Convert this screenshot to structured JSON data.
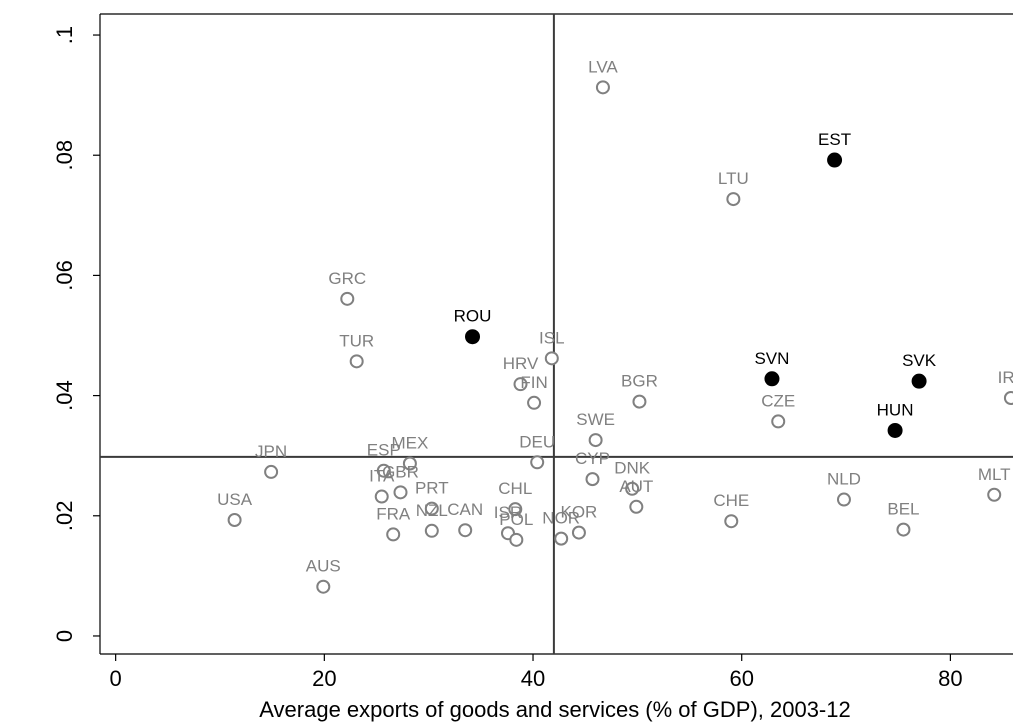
{
  "chart_data": {
    "type": "scatter",
    "title": "",
    "xlabel": "Average exports of goods and services (% of GDP), 2003-12",
    "ylabel": "",
    "xlim": [
      -1.5,
      86
    ],
    "ylim": [
      -0.003,
      0.1035
    ],
    "x_ticks": [
      0,
      20,
      40,
      60,
      80
    ],
    "x_tick_labels": [
      "0",
      "20",
      "40",
      "60",
      "80"
    ],
    "y_ticks": [
      0,
      0.02,
      0.04,
      0.06,
      0.08,
      0.1
    ],
    "y_tick_labels": [
      "0",
      ".02",
      ".04",
      ".06",
      ".08",
      ".1"
    ],
    "reference_lines": {
      "x": 42,
      "y": 0.0298
    },
    "grid": false,
    "legend": "none",
    "colors": {
      "highlighted": "#000000",
      "other": "#808080"
    },
    "series": [
      {
        "marker": "hollow-circle",
        "points": [
          {
            "label": "LVA",
            "x": 46.7,
            "y": 0.0913
          },
          {
            "label": "LTU",
            "x": 59.2,
            "y": 0.0727
          },
          {
            "label": "GRC",
            "x": 22.2,
            "y": 0.0561
          },
          {
            "label": "TUR",
            "x": 23.1,
            "y": 0.0457
          },
          {
            "label": "ISL",
            "x": 41.8,
            "y": 0.0462
          },
          {
            "label": "HRV",
            "x": 38.8,
            "y": 0.0419
          },
          {
            "label": "FIN",
            "x": 40.1,
            "y": 0.0388
          },
          {
            "label": "BGR",
            "x": 50.2,
            "y": 0.039
          },
          {
            "label": "CZE",
            "x": 63.5,
            "y": 0.0357
          },
          {
            "label": "IRL",
            "x": 85.8,
            "y": 0.0396
          },
          {
            "label": "SWE",
            "x": 46.0,
            "y": 0.0326
          },
          {
            "label": "JPN",
            "x": 14.9,
            "y": 0.0273
          },
          {
            "label": "ESP",
            "x": 25.7,
            "y": 0.0275
          },
          {
            "label": "MEX",
            "x": 28.2,
            "y": 0.0287
          },
          {
            "label": "DEU",
            "x": 40.4,
            "y": 0.0289
          },
          {
            "label": "CYP",
            "x": 45.7,
            "y": 0.0261
          },
          {
            "label": "DNK",
            "x": 49.5,
            "y": 0.0245
          },
          {
            "label": "ITA",
            "x": 25.5,
            "y": 0.0232
          },
          {
            "label": "GBR",
            "x": 27.3,
            "y": 0.0239
          },
          {
            "label": "USA",
            "x": 11.4,
            "y": 0.0193
          },
          {
            "label": "PRT",
            "x": 30.3,
            "y": 0.0212
          },
          {
            "label": "CHL",
            "x": 38.3,
            "y": 0.0211
          },
          {
            "label": "AUT",
            "x": 49.9,
            "y": 0.0215
          },
          {
            "label": "CHE",
            "x": 59.0,
            "y": 0.0191
          },
          {
            "label": "NLD",
            "x": 69.8,
            "y": 0.0227
          },
          {
            "label": "MLT",
            "x": 84.2,
            "y": 0.0235
          },
          {
            "label": "FRA",
            "x": 26.6,
            "y": 0.0169
          },
          {
            "label": "NZL",
            "x": 30.3,
            "y": 0.0175
          },
          {
            "label": "CAN",
            "x": 33.5,
            "y": 0.0176
          },
          {
            "label": "ISR",
            "x": 37.6,
            "y": 0.0171
          },
          {
            "label": "POL",
            "x": 38.4,
            "y": 0.016
          },
          {
            "label": "NOR",
            "x": 42.7,
            "y": 0.0162
          },
          {
            "label": "KOR",
            "x": 44.4,
            "y": 0.0172
          },
          {
            "label": "BEL",
            "x": 75.5,
            "y": 0.0177
          },
          {
            "label": "AUS",
            "x": 19.9,
            "y": 0.0082
          }
        ]
      },
      {
        "marker": "filled-circle",
        "points": [
          {
            "label": "EST",
            "x": 68.9,
            "y": 0.0792
          },
          {
            "label": "ROU",
            "x": 34.2,
            "y": 0.0498
          },
          {
            "label": "SVN",
            "x": 62.9,
            "y": 0.0428
          },
          {
            "label": "SVK",
            "x": 77.0,
            "y": 0.0424
          },
          {
            "label": "HUN",
            "x": 74.7,
            "y": 0.0342
          }
        ]
      }
    ]
  }
}
